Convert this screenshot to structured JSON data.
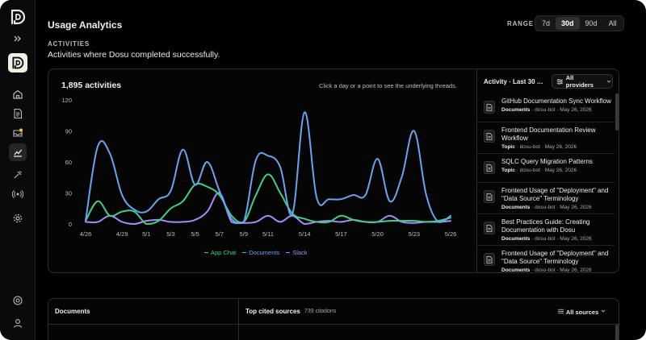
{
  "header": {
    "title": "Usage Analytics",
    "range_label": "RANGE",
    "range_options": [
      "7d",
      "30d",
      "90d",
      "All"
    ],
    "range_selected": "30d"
  },
  "section": {
    "label": "ACTIVITIES",
    "subtitle": "Activities where Dosu completed successfully."
  },
  "chart_card": {
    "count_label": "1,895 activities",
    "hint": "Click a day or a point to see the underlying threads."
  },
  "chart_data": {
    "type": "line",
    "x": [
      "4/26",
      "4/27",
      "4/28",
      "4/29",
      "4/30",
      "5/1",
      "5/2",
      "5/3",
      "5/4",
      "5/5",
      "5/6",
      "5/7",
      "5/8",
      "5/9",
      "5/10",
      "5/11",
      "5/12",
      "5/13",
      "5/14",
      "5/15",
      "5/16",
      "5/17",
      "5/18",
      "5/19",
      "5/20",
      "5/21",
      "5/22",
      "5/23",
      "5/24",
      "5/25",
      "5/26"
    ],
    "x_tick_labels": [
      "4/26",
      "4/29",
      "5/1",
      "5/3",
      "5/5",
      "5/7",
      "5/9",
      "5/11",
      "5/14",
      "5/17",
      "5/20",
      "5/23",
      "5/26"
    ],
    "ylim": [
      0,
      120
    ],
    "y_ticks": [
      0,
      30,
      60,
      90,
      120
    ],
    "series": [
      {
        "name": "App Chat",
        "color": "#3ecf8e",
        "values": [
          3,
          22,
          8,
          12,
          12,
          0,
          3,
          15,
          22,
          38,
          36,
          28,
          8,
          2,
          28,
          48,
          30,
          10,
          5,
          2,
          2,
          8,
          4,
          2,
          2,
          3,
          3,
          3,
          2,
          3,
          6
        ]
      },
      {
        "name": "Documents",
        "color": "#6aa3f0",
        "values": [
          3,
          75,
          68,
          28,
          14,
          12,
          24,
          32,
          72,
          38,
          60,
          32,
          5,
          2,
          62,
          66,
          55,
          10,
          108,
          25,
          24,
          24,
          28,
          28,
          63,
          22,
          46,
          90,
          28,
          2,
          8
        ]
      },
      {
        "name": "Slack",
        "color": "#a78bfa",
        "values": [
          2,
          2,
          8,
          2,
          0,
          3,
          4,
          2,
          2,
          4,
          12,
          30,
          2,
          1,
          2,
          8,
          2,
          8,
          0,
          2,
          3,
          2,
          4,
          2,
          2,
          8,
          2,
          1,
          2,
          2,
          3
        ]
      }
    ]
  },
  "panel": {
    "title": "Activity · Last 30 …",
    "providers_label": "All providers",
    "items": [
      {
        "title": "GitHub Documentation Sync Workflow",
        "kind": "Documents",
        "author": "dosu-bot",
        "date": "May 26, 2026"
      },
      {
        "title": "Frontend Documentation Review Workflow",
        "kind": "Topic",
        "author": "dosu-bot",
        "date": "May 26, 2026"
      },
      {
        "title": "SQLC Query Migration Patterns",
        "kind": "Topic",
        "author": "dosu-bot",
        "date": "May 26, 2026"
      },
      {
        "title": "Frontend Usage of \"Deployment\" and \"Data Source\" Terminology",
        "kind": "Documents",
        "author": "dosu-bot",
        "date": "May 26, 2026"
      },
      {
        "title": "Best Practices Guide: Creating Documentation with Dosu",
        "kind": "Documents",
        "author": "dosu-bot",
        "date": "May 26, 2026"
      },
      {
        "title": "Frontend Usage of \"Deployment\" and \"Data Source\" Terminology",
        "kind": "Documents",
        "author": "dosu-bot",
        "date": "May 26, 2026"
      }
    ]
  },
  "bottom": {
    "documents_label": "Documents",
    "top_sources_label": "Top cited sources",
    "citations_label": "739 citations",
    "sources_filter": "All sources"
  }
}
